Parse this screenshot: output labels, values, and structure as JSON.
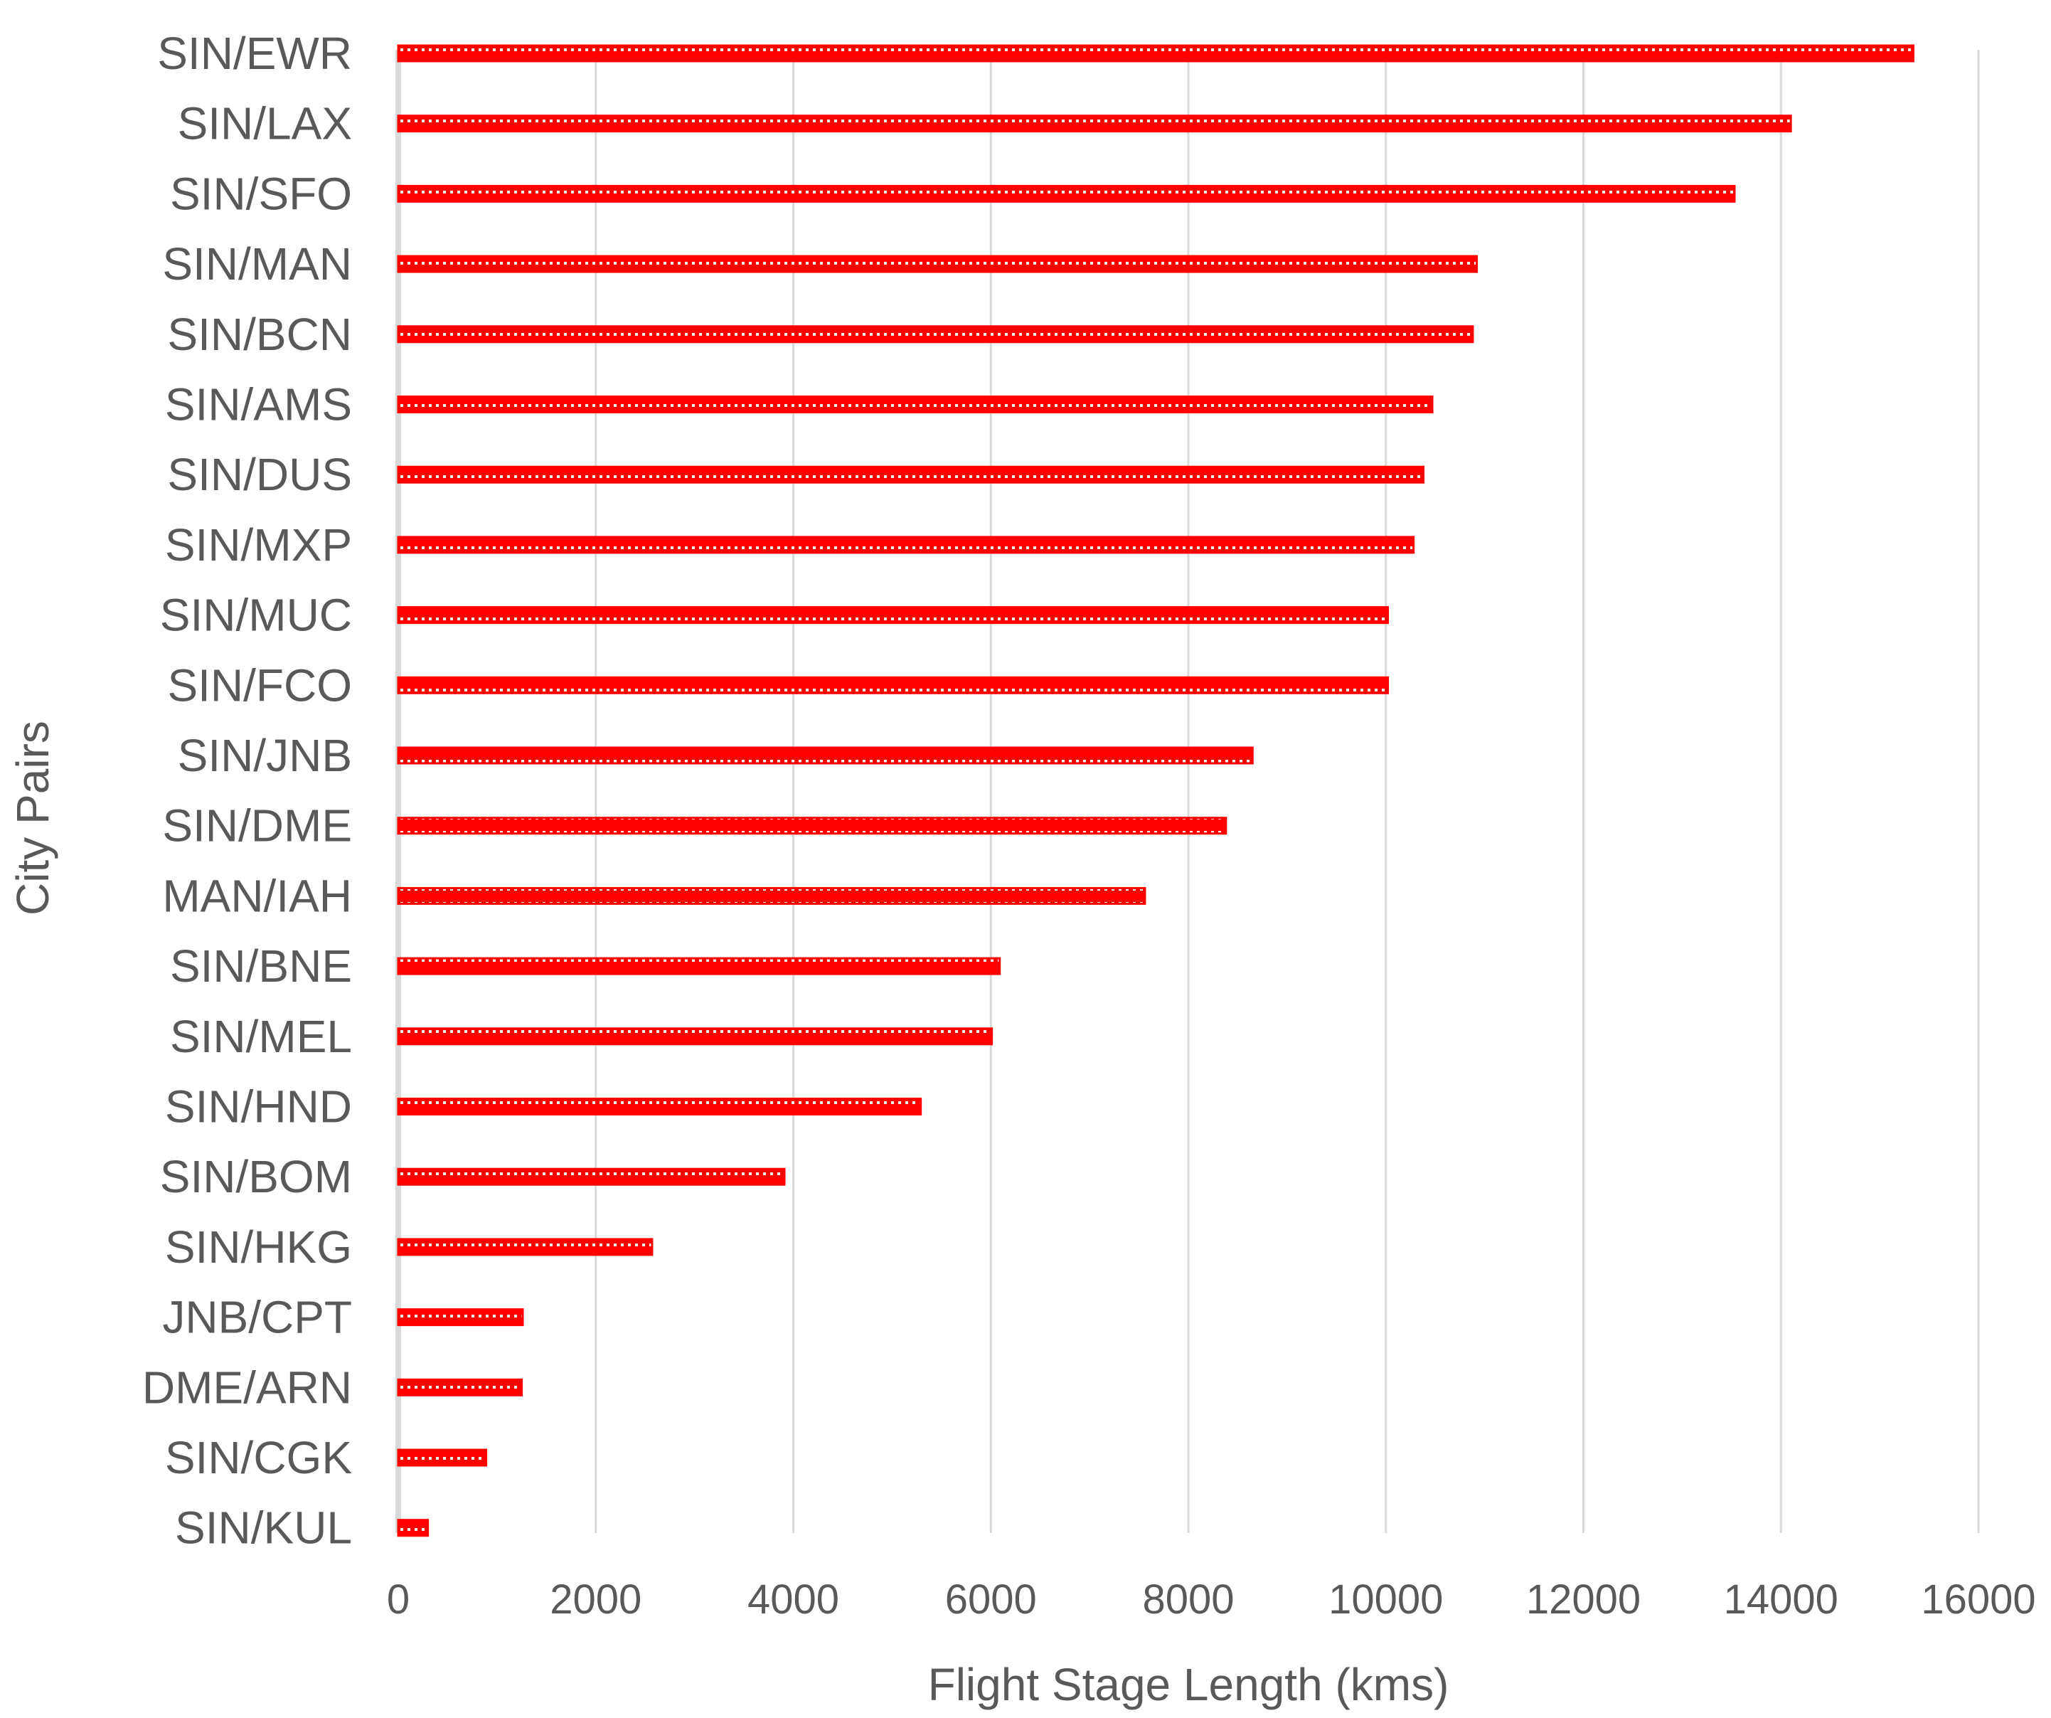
{
  "chart_data": {
    "type": "bar",
    "orientation": "horizontal",
    "categories": [
      "SIN/EWR",
      "SIN/LAX",
      "SIN/SFO",
      "SIN/MAN",
      "SIN/BCN",
      "SIN/AMS",
      "SIN/DUS",
      "SIN/MXP",
      "SIN/MUC",
      "SIN/FCO",
      "SIN/JNB",
      "SIN/DME",
      "MAN/IAH",
      "SIN/BNE",
      "SIN/MEL",
      "SIN/HND",
      "SIN/BOM",
      "SIN/HKG",
      "JNB/CPT",
      "DME/ARN",
      "SIN/CGK",
      "SIN/KUL"
    ],
    "values": [
      15340,
      14100,
      13530,
      10920,
      10880,
      10470,
      10380,
      10280,
      10020,
      10020,
      8650,
      8380,
      7560,
      6090,
      6010,
      5290,
      3910,
      2570,
      1260,
      1250,
      890,
      300
    ],
    "xlabel": "Flight Stage Length (kms)",
    "ylabel": "City Pairs",
    "xlim": [
      0,
      16000
    ],
    "xticks": [
      0,
      2000,
      4000,
      6000,
      8000,
      10000,
      12000,
      14000,
      16000
    ],
    "grid": "vertical",
    "legend": "none",
    "colors": {
      "bar": "#ff0000",
      "bar_pattern_dot": "#ffffff",
      "grid": "#d9d9d9",
      "text": "#595959"
    }
  }
}
